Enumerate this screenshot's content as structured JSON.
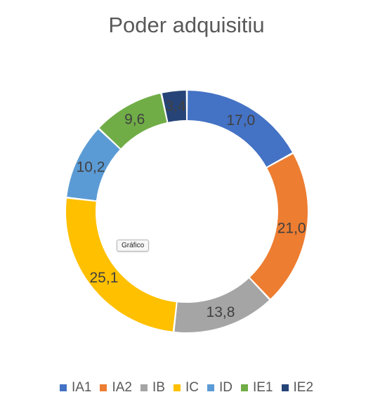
{
  "chart_data": {
    "type": "pie",
    "variant": "doughnut",
    "title": "Poder adquisitiu",
    "categories": [
      "IA1",
      "IA2",
      "IB",
      "IC",
      "ID",
      "IE1",
      "IE2"
    ],
    "values": [
      17.0,
      21.0,
      13.8,
      25.1,
      10.2,
      9.6,
      3.4
    ],
    "labels": [
      "17,0",
      "21,0",
      "13,8",
      "25,1",
      "10,2",
      "9,6",
      "3,4"
    ],
    "colors": [
      "#4472C4",
      "#ED7D31",
      "#A5A5A5",
      "#FFC000",
      "#5B9BD5",
      "#70AD47",
      "#264478"
    ],
    "legend_position": "bottom"
  },
  "tooltip": {
    "text": "Gráfico"
  }
}
